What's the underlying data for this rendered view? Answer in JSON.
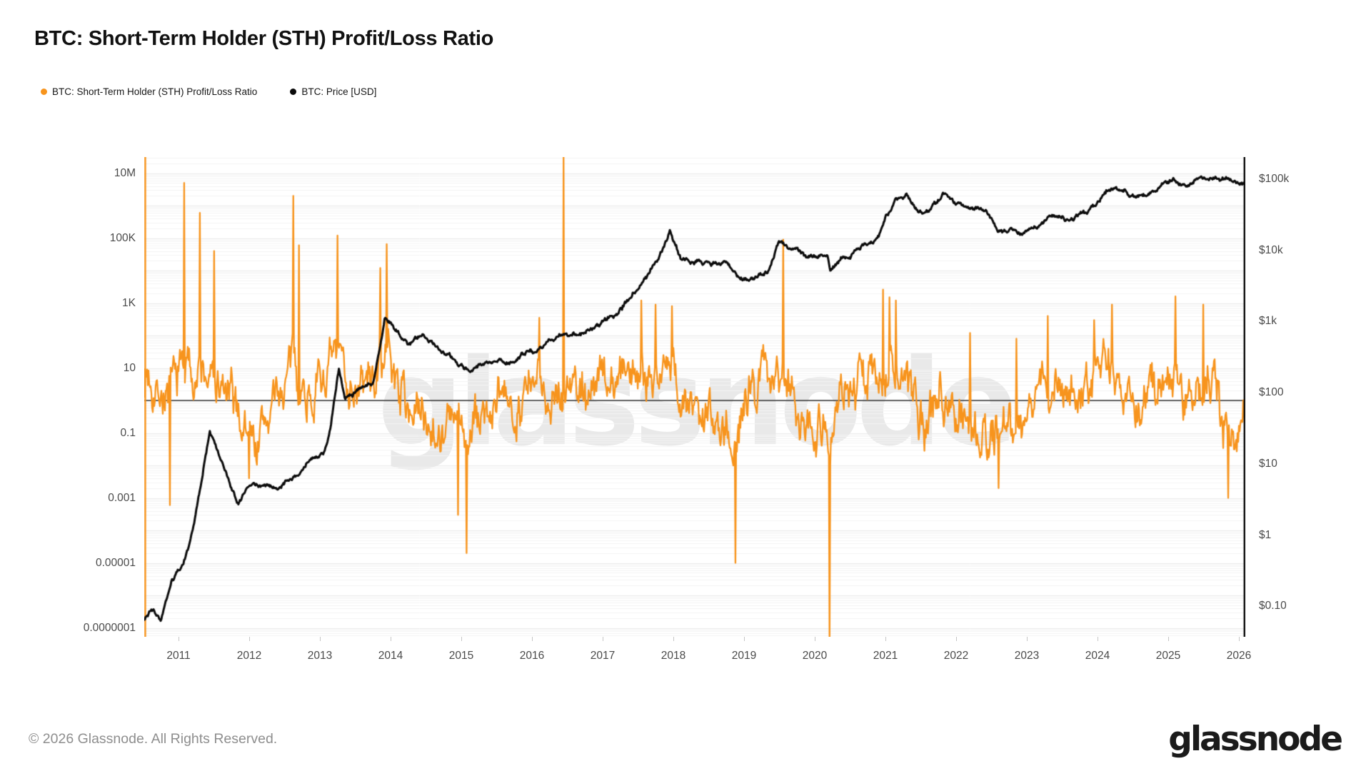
{
  "header": {
    "title": "BTC: Short-Term Holder (STH) Profit/Loss Ratio"
  },
  "legend": [
    {
      "label": "BTC: Short-Term Holder (STH) Profit/Loss Ratio",
      "color": "#F7941D"
    },
    {
      "label": "BTC: Price [USD]",
      "color": "#0b0b0b"
    }
  ],
  "watermark": "glassnode",
  "footer": {
    "copyright": "© 2026 Glassnode. All Rights Reserved.",
    "brand": "glassnode"
  },
  "chart_data": {
    "type": "line",
    "title": "BTC: Short-Term Holder (STH) Profit/Loss Ratio",
    "x_axis": {
      "ticks": [
        2011,
        2012,
        2013,
        2014,
        2015,
        2016,
        2017,
        2018,
        2019,
        2020,
        2021,
        2022,
        2023,
        2024,
        2025,
        2026
      ],
      "xlim": [
        2010.52,
        2026.09
      ]
    },
    "left_axis": {
      "scale": "log",
      "ylim": [
        3e-08,
        30000000.0
      ],
      "ticks": [
        {
          "label": "10M",
          "value": 10000000.0
        },
        {
          "label": "100K",
          "value": 100000.0
        },
        {
          "label": "1K",
          "value": 1000.0
        },
        {
          "label": "10",
          "value": 10
        },
        {
          "label": "0.1",
          "value": 0.1
        },
        {
          "label": "0.001",
          "value": 0.001
        },
        {
          "label": "0.00001",
          "value": 1e-05
        },
        {
          "label": "0.0000001",
          "value": 1e-07
        }
      ]
    },
    "right_axis": {
      "scale": "log",
      "ylim": [
        0.03,
        180000
      ],
      "ticks": [
        {
          "label": "$100k",
          "value": 100000
        },
        {
          "label": "$10k",
          "value": 10000
        },
        {
          "label": "$1k",
          "value": 1000
        },
        {
          "label": "$100",
          "value": 100
        },
        {
          "label": "$10",
          "value": 10
        },
        {
          "label": "$1",
          "value": 1
        },
        {
          "label": "$0.10",
          "value": 0.1
        }
      ]
    },
    "reference_line": {
      "value": 1,
      "axis": "left"
    },
    "grid": "log-minor-horizontal",
    "legend_position": "top-left",
    "series": [
      {
        "name": "BTC: Short-Term Holder (STH) Profit/Loss Ratio",
        "axis": "left",
        "color": "#F7941D",
        "start_vline": 2010.53,
        "keypoints": [
          [
            2010.6,
            6
          ],
          [
            2010.78,
            2
          ],
          [
            2010.9,
            1.5
          ],
          [
            2011.05,
            12
          ],
          [
            2011.2,
            10
          ],
          [
            2011.35,
            6
          ],
          [
            2011.5,
            3
          ],
          [
            2011.65,
            1.5
          ],
          [
            2011.8,
            0.6
          ],
          [
            2011.95,
            0.15
          ],
          [
            2012.1,
            0.05
          ],
          [
            2012.3,
            0.5
          ],
          [
            2012.5,
            3
          ],
          [
            2012.62,
            14
          ],
          [
            2012.78,
            2
          ],
          [
            2012.95,
            2.5
          ],
          [
            2013.1,
            8
          ],
          [
            2013.25,
            18
          ],
          [
            2013.4,
            6
          ],
          [
            2013.6,
            2
          ],
          [
            2013.8,
            8
          ],
          [
            2013.95,
            30
          ],
          [
            2014.1,
            4
          ],
          [
            2014.3,
            0.5
          ],
          [
            2014.5,
            0.35
          ],
          [
            2014.7,
            0.15
          ],
          [
            2014.9,
            0.2
          ],
          [
            2015.08,
            0.05
          ],
          [
            2015.3,
            0.4
          ],
          [
            2015.55,
            0.5
          ],
          [
            2015.8,
            1.3
          ],
          [
            2016.05,
            2
          ],
          [
            2016.3,
            2.5
          ],
          [
            2016.55,
            3
          ],
          [
            2016.8,
            2.2
          ],
          [
            2017.05,
            5
          ],
          [
            2017.3,
            8
          ],
          [
            2017.55,
            9
          ],
          [
            2017.8,
            10
          ],
          [
            2017.98,
            11
          ],
          [
            2018.15,
            0.5
          ],
          [
            2018.35,
            0.3
          ],
          [
            2018.55,
            0.5
          ],
          [
            2018.75,
            0.25
          ],
          [
            2018.9,
            0.06
          ],
          [
            2019.05,
            1
          ],
          [
            2019.25,
            6
          ],
          [
            2019.45,
            12
          ],
          [
            2019.6,
            6
          ],
          [
            2019.8,
            0.5
          ],
          [
            2020.0,
            0.3
          ],
          [
            2020.18,
            0.07
          ],
          [
            2020.35,
            1.5
          ],
          [
            2020.55,
            2.5
          ],
          [
            2020.75,
            4
          ],
          [
            2020.95,
            16
          ],
          [
            2021.1,
            9
          ],
          [
            2021.25,
            4
          ],
          [
            2021.45,
            0.45
          ],
          [
            2021.6,
            0.22
          ],
          [
            2021.78,
            2
          ],
          [
            2021.95,
            1
          ],
          [
            2022.1,
            0.25
          ],
          [
            2022.3,
            0.15
          ],
          [
            2022.5,
            0.09
          ],
          [
            2022.7,
            0.3
          ],
          [
            2022.9,
            0.16
          ],
          [
            2023.05,
            1.2
          ],
          [
            2023.25,
            5
          ],
          [
            2023.45,
            1.8
          ],
          [
            2023.65,
            1.6
          ],
          [
            2023.85,
            2.5
          ],
          [
            2024.05,
            7
          ],
          [
            2024.2,
            9
          ],
          [
            2024.4,
            1
          ],
          [
            2024.55,
            0.5
          ],
          [
            2024.75,
            2
          ],
          [
            2024.95,
            5
          ],
          [
            2025.1,
            7
          ],
          [
            2025.3,
            1.5
          ],
          [
            2025.45,
            2.5
          ],
          [
            2025.6,
            3
          ],
          [
            2025.75,
            0.3
          ],
          [
            2025.88,
            0.1
          ],
          [
            2026.0,
            0.45
          ],
          [
            2026.09,
            0.7
          ]
        ],
        "spikes": [
          [
            2010.88,
            0.0006
          ],
          [
            2011.08,
            5000000
          ],
          [
            2011.3,
            600000
          ],
          [
            2011.5,
            40000
          ],
          [
            2012.0,
            0.004
          ],
          [
            2012.62,
            2000000
          ],
          [
            2012.7,
            60000
          ],
          [
            2013.25,
            120000
          ],
          [
            2013.85,
            12000
          ],
          [
            2013.95,
            65000
          ],
          [
            2014.95,
            0.0003
          ],
          [
            2015.07,
            2e-05
          ],
          [
            2016.1,
            350
          ],
          [
            2016.45,
            40000000
          ],
          [
            2017.55,
            1200
          ],
          [
            2017.75,
            900
          ],
          [
            2017.98,
            800
          ],
          [
            2018.88,
            1e-05
          ],
          [
            2019.55,
            90000
          ],
          [
            2020.21,
            3e-08
          ],
          [
            2020.97,
            2600
          ],
          [
            2021.06,
            1500
          ],
          [
            2021.15,
            1200
          ],
          [
            2022.2,
            120
          ],
          [
            2022.6,
            0.002
          ],
          [
            2022.85,
            80
          ],
          [
            2023.3,
            400
          ],
          [
            2023.95,
            300
          ],
          [
            2024.2,
            900
          ],
          [
            2025.1,
            1600
          ],
          [
            2025.5,
            900
          ],
          [
            2025.85,
            0.001
          ]
        ]
      },
      {
        "name": "BTC: Price [USD]",
        "axis": "right",
        "color": "#0b0b0b",
        "keypoints": [
          [
            2010.52,
            0.065
          ],
          [
            2010.62,
            0.09
          ],
          [
            2010.75,
            0.062
          ],
          [
            2010.9,
            0.2
          ],
          [
            2011.05,
            0.32
          ],
          [
            2011.2,
            1.1
          ],
          [
            2011.35,
            8.5
          ],
          [
            2011.44,
            31
          ],
          [
            2011.6,
            11
          ],
          [
            2011.72,
            5.5
          ],
          [
            2011.85,
            2.4
          ],
          [
            2012.0,
            5.3
          ],
          [
            2012.2,
            4.9
          ],
          [
            2012.45,
            5.1
          ],
          [
            2012.65,
            6.8
          ],
          [
            2012.85,
            11.5
          ],
          [
            2013.05,
            14
          ],
          [
            2013.15,
            30
          ],
          [
            2013.27,
            220
          ],
          [
            2013.35,
            80
          ],
          [
            2013.55,
            105
          ],
          [
            2013.75,
            135
          ],
          [
            2013.92,
            1120
          ],
          [
            2014.05,
            820
          ],
          [
            2014.25,
            460
          ],
          [
            2014.45,
            590
          ],
          [
            2014.65,
            480
          ],
          [
            2014.85,
            330
          ],
          [
            2015.04,
            215
          ],
          [
            2015.25,
            240
          ],
          [
            2015.5,
            255
          ],
          [
            2015.75,
            300
          ],
          [
            2015.95,
            420
          ],
          [
            2016.15,
            415
          ],
          [
            2016.45,
            670
          ],
          [
            2016.65,
            610
          ],
          [
            2016.85,
            730
          ],
          [
            2017.0,
            990
          ],
          [
            2017.2,
            1190
          ],
          [
            2017.45,
            2550
          ],
          [
            2017.65,
            4300
          ],
          [
            2017.78,
            7200
          ],
          [
            2017.95,
            19200
          ],
          [
            2018.1,
            8300
          ],
          [
            2018.3,
            7000
          ],
          [
            2018.5,
            6500
          ],
          [
            2018.75,
            6400
          ],
          [
            2018.95,
            3300
          ],
          [
            2019.15,
            3900
          ],
          [
            2019.35,
            5400
          ],
          [
            2019.5,
            12600
          ],
          [
            2019.7,
            10200
          ],
          [
            2019.9,
            7400
          ],
          [
            2020.05,
            8800
          ],
          [
            2020.18,
            9100
          ],
          [
            2020.22,
            4900
          ],
          [
            2020.35,
            6700
          ],
          [
            2020.55,
            9200
          ],
          [
            2020.75,
            11500
          ],
          [
            2020.9,
            17000
          ],
          [
            2021.0,
            29000
          ],
          [
            2021.15,
            47000
          ],
          [
            2021.3,
            61500
          ],
          [
            2021.42,
            37000
          ],
          [
            2021.55,
            33000
          ],
          [
            2021.7,
            46000
          ],
          [
            2021.85,
            64500
          ],
          [
            2022.0,
            46500
          ],
          [
            2022.15,
            42000
          ],
          [
            2022.35,
            39000
          ],
          [
            2022.5,
            29000
          ],
          [
            2022.6,
            19500
          ],
          [
            2022.75,
            20500
          ],
          [
            2022.92,
            16200
          ],
          [
            2023.1,
            23000
          ],
          [
            2023.3,
            29000
          ],
          [
            2023.5,
            30200
          ],
          [
            2023.65,
            26500
          ],
          [
            2023.85,
            35000
          ],
          [
            2024.0,
            43500
          ],
          [
            2024.15,
            64000
          ],
          [
            2024.25,
            68500
          ],
          [
            2024.4,
            62000
          ],
          [
            2024.55,
            57000
          ],
          [
            2024.7,
            61000
          ],
          [
            2024.85,
            72000
          ],
          [
            2024.95,
            96000
          ],
          [
            2025.05,
            103000
          ],
          [
            2025.2,
            85000
          ],
          [
            2025.35,
            96500
          ],
          [
            2025.5,
            108000
          ],
          [
            2025.62,
            116000
          ],
          [
            2025.75,
            111000
          ],
          [
            2025.85,
            99000
          ],
          [
            2025.95,
            89000
          ],
          [
            2026.09,
            91000
          ]
        ],
        "spikes": []
      }
    ]
  }
}
